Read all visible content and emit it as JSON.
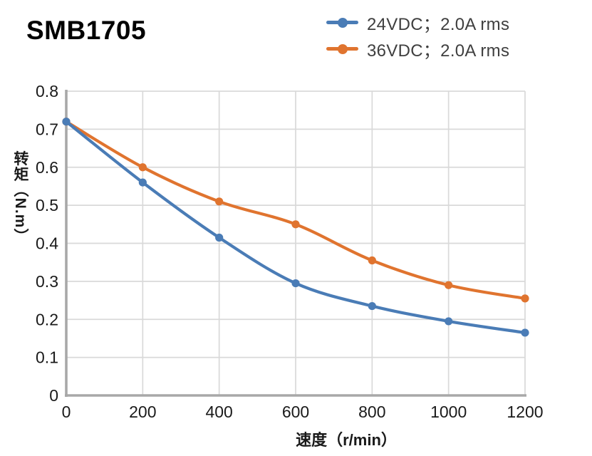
{
  "title": "SMB1705",
  "legend": {
    "items": [
      {
        "label": "24VDC；2.0A rms"
      },
      {
        "label": "36VDC；2.0A rms"
      }
    ]
  },
  "chart_data": {
    "type": "line",
    "x": [
      0,
      200,
      400,
      600,
      800,
      1000,
      1200
    ],
    "series": [
      {
        "name": "24VDC；2.0A rms",
        "color": "#4A7CB6",
        "values": [
          0.72,
          0.56,
          0.415,
          0.295,
          0.235,
          0.195,
          0.165
        ]
      },
      {
        "name": "36VDC；2.0A rms",
        "color": "#E0742F",
        "values": [
          0.72,
          0.6,
          0.51,
          0.45,
          0.355,
          0.29,
          0.255
        ]
      }
    ],
    "xlabel": "速度（r/min）",
    "ylabel": "转矩（N.m）",
    "xlim": [
      0,
      1200
    ],
    "ylim": [
      0,
      0.8
    ],
    "x_ticks": [
      0,
      200,
      400,
      600,
      800,
      1000,
      1200
    ],
    "y_ticks": [
      0,
      0.1,
      0.2,
      0.3,
      0.4,
      0.5,
      0.6,
      0.7,
      0.8
    ],
    "grid": true,
    "legend_position": "top-right",
    "colors": {
      "grid": "#D9D9D9",
      "axis": "#A8A8A8",
      "tick_text": "#1A1A1A",
      "legend_text": "#3F3F3F",
      "title_text": "#000000"
    }
  }
}
